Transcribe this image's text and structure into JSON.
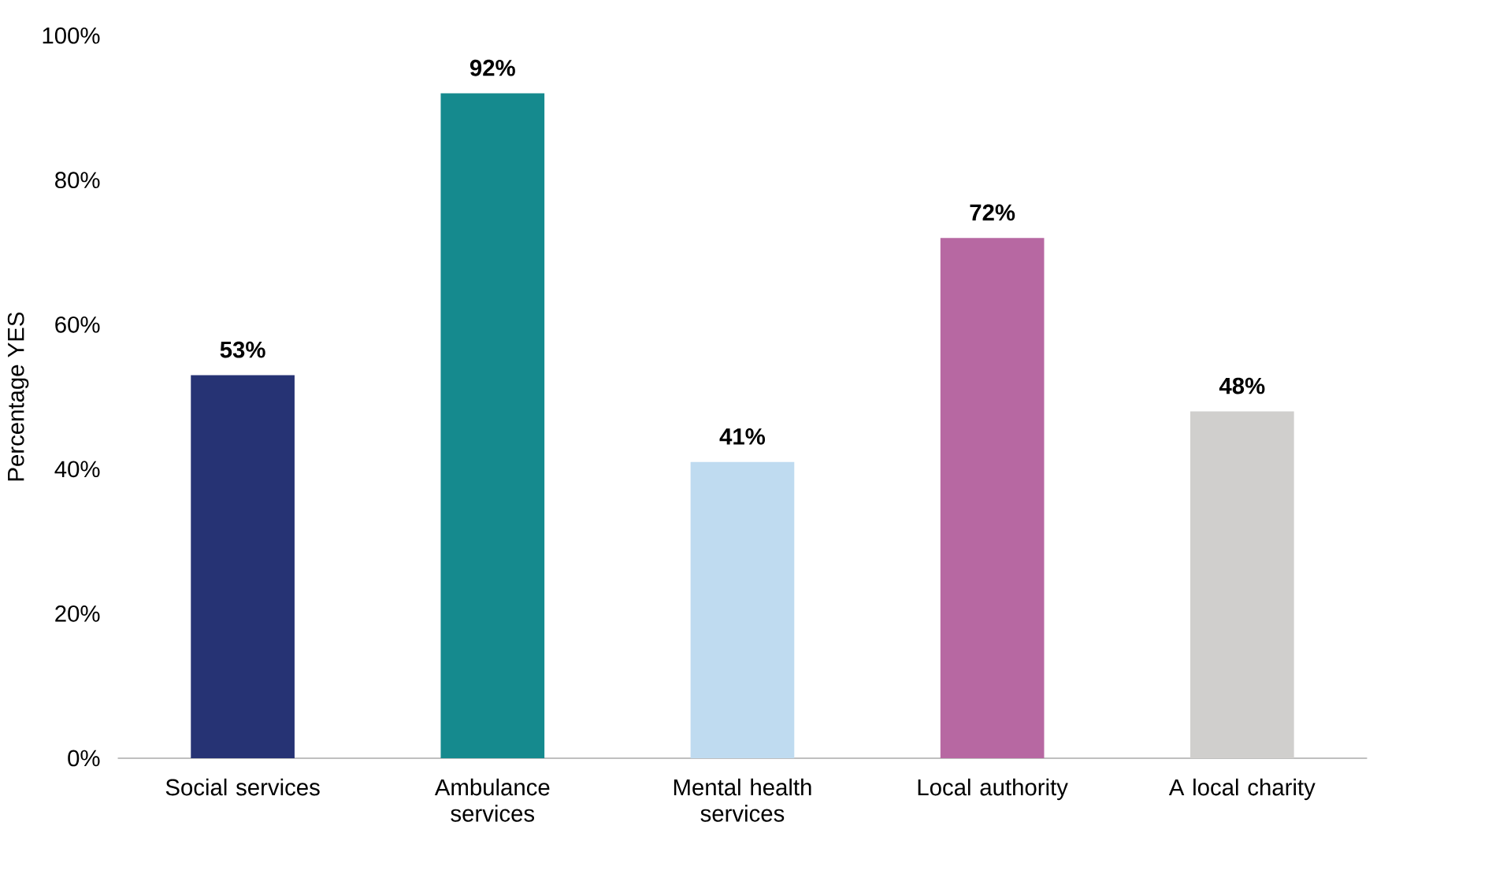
{
  "chart_data": {
    "type": "bar",
    "ylabel": "Percentage YES",
    "categories": [
      "Social services",
      "Ambulance services",
      "Mental health services",
      "Local authority",
      "A local charity"
    ],
    "values": [
      53,
      92,
      41,
      72,
      48
    ],
    "value_labels": [
      "53%",
      "92%",
      "41%",
      "72%",
      "48%"
    ],
    "colors": [
      "#263374",
      "#158a8e",
      "#bfdbf0",
      "#b768a2",
      "#d0cfcd"
    ],
    "ylim": [
      0,
      100
    ],
    "yticks": [
      {
        "value": 0,
        "label": "0%"
      },
      {
        "value": 20,
        "label": "20%"
      },
      {
        "value": 40,
        "label": "40%"
      },
      {
        "value": 60,
        "label": "60%"
      },
      {
        "value": 80,
        "label": "80%"
      },
      {
        "value": 100,
        "label": "100%"
      }
    ]
  }
}
